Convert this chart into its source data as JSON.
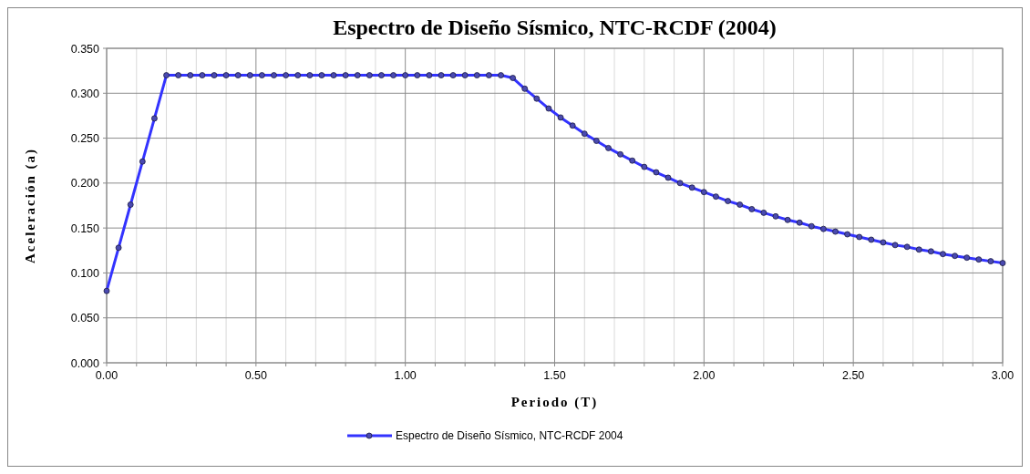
{
  "chart_data": {
    "type": "line",
    "title": "Espectro de Diseño Sísmico, NTC-RCDF (2004)",
    "xlabel": "Periodo (T)",
    "ylabel": "Aceleración (a)",
    "x": [
      0,
      0.04,
      0.08,
      0.12,
      0.16,
      0.2,
      0.24,
      0.28,
      0.32,
      0.36,
      0.4,
      0.44,
      0.48,
      0.52,
      0.56,
      0.6,
      0.64,
      0.68,
      0.72,
      0.76,
      0.8,
      0.84,
      0.88,
      0.92,
      0.96,
      1,
      1.04,
      1.08,
      1.12,
      1.16,
      1.2,
      1.24,
      1.28,
      1.32,
      1.36,
      1.4,
      1.44,
      1.48,
      1.52,
      1.56,
      1.6,
      1.64,
      1.68,
      1.72,
      1.76,
      1.8,
      1.84,
      1.88,
      1.92,
      1.96,
      2,
      2.04,
      2.08,
      2.12,
      2.16,
      2.2,
      2.24,
      2.28,
      2.32,
      2.36,
      2.4,
      2.44,
      2.48,
      2.52,
      2.56,
      2.6,
      2.64,
      2.68,
      2.72,
      2.76,
      2.8,
      2.84,
      2.88,
      2.92,
      2.96,
      3
    ],
    "series": [
      {
        "name": "Espectro de Diseño Sísmico, NTC-RCDF  2004",
        "color": "#3333ff",
        "values": [
          0.08,
          0.128,
          0.176,
          0.224,
          0.272,
          0.32,
          0.32,
          0.32,
          0.32,
          0.32,
          0.32,
          0.32,
          0.32,
          0.32,
          0.32,
          0.32,
          0.32,
          0.32,
          0.32,
          0.32,
          0.32,
          0.32,
          0.32,
          0.32,
          0.32,
          0.32,
          0.32,
          0.32,
          0.32,
          0.32,
          0.32,
          0.32,
          0.32,
          0.32,
          0.317,
          0.305,
          0.294,
          0.283,
          0.273,
          0.264,
          0.255,
          0.247,
          0.239,
          0.232,
          0.225,
          0.218,
          0.212,
          0.206,
          0.2,
          0.195,
          0.19,
          0.185,
          0.18,
          0.176,
          0.171,
          0.167,
          0.163,
          0.159,
          0.156,
          0.152,
          0.149,
          0.146,
          0.143,
          0.14,
          0.137,
          0.134,
          0.131,
          0.129,
          0.126,
          0.124,
          0.121,
          0.119,
          0.117,
          0.115,
          0.113,
          0.111
        ]
      }
    ],
    "xlim": [
      0,
      3
    ],
    "xticks": [
      {
        "value": 0,
        "label": "0.00"
      },
      {
        "value": 0.1,
        "label": null
      },
      {
        "value": 0.2,
        "label": null
      },
      {
        "value": 0.3,
        "label": null
      },
      {
        "value": 0.4,
        "label": null
      },
      {
        "value": 0.5,
        "label": "0.50"
      },
      {
        "value": 0.6,
        "label": null
      },
      {
        "value": 0.7,
        "label": null
      },
      {
        "value": 0.8,
        "label": null
      },
      {
        "value": 0.9,
        "label": null
      },
      {
        "value": 1,
        "label": "1.00"
      },
      {
        "value": 1.1,
        "label": null
      },
      {
        "value": 1.2,
        "label": null
      },
      {
        "value": 1.3,
        "label": null
      },
      {
        "value": 1.4,
        "label": null
      },
      {
        "value": 1.5,
        "label": "1.50"
      },
      {
        "value": 1.6,
        "label": null
      },
      {
        "value": 1.7,
        "label": null
      },
      {
        "value": 1.8,
        "label": null
      },
      {
        "value": 1.9,
        "label": null
      },
      {
        "value": 2,
        "label": "2.00"
      },
      {
        "value": 2.1,
        "label": null
      },
      {
        "value": 2.2,
        "label": null
      },
      {
        "value": 2.3,
        "label": null
      },
      {
        "value": 2.4,
        "label": null
      },
      {
        "value": 2.5,
        "label": "2.50"
      },
      {
        "value": 2.6,
        "label": null
      },
      {
        "value": 2.7,
        "label": null
      },
      {
        "value": 2.8,
        "label": null
      },
      {
        "value": 2.9,
        "label": null
      },
      {
        "value": 3,
        "label": "3.00"
      }
    ],
    "ylim": [
      0,
      0.35
    ],
    "yticks": [
      {
        "value": 0,
        "label": "0.000"
      },
      {
        "value": 0.05,
        "label": "0.050"
      },
      {
        "value": 0.1,
        "label": "0.100"
      },
      {
        "value": 0.15,
        "label": "0.150"
      },
      {
        "value": 0.2,
        "label": "0.200"
      },
      {
        "value": 0.25,
        "label": "0.250"
      },
      {
        "value": 0.3,
        "label": "0.300"
      },
      {
        "value": 0.35,
        "label": "0.350"
      }
    ],
    "grid": true,
    "legend": "bottom",
    "marker": "circle",
    "line_style": "solid"
  }
}
